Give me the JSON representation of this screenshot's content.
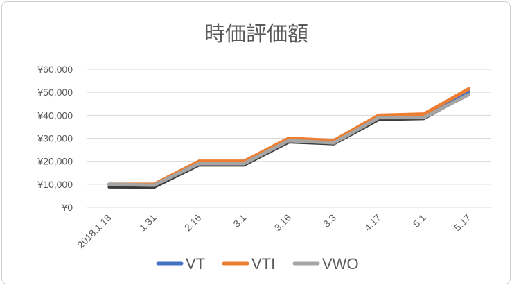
{
  "chart_data": {
    "type": "line",
    "title": "時価評価額",
    "categories": [
      "2018.1.18",
      "1.31",
      "2.16",
      "3.1",
      "3.16",
      "3.3",
      "4.17",
      "5.1",
      "5.17"
    ],
    "y_tick_labels": [
      "¥0",
      "¥10,000",
      "¥20,000",
      "¥30,000",
      "¥40,000",
      "¥50,000",
      "¥60,000"
    ],
    "ylim": [
      0,
      60000
    ],
    "grid": true,
    "legend_position": "bottom",
    "series": [
      {
        "name": "VT",
        "color": "#4472C4",
        "values": [
          10000,
          9900,
          19500,
          19500,
          29500,
          28700,
          39300,
          39700,
          50500
        ]
      },
      {
        "name": "VTI",
        "color": "#ED7D31",
        "values": [
          10000,
          10000,
          20000,
          20000,
          30000,
          29000,
          40000,
          40500,
          51500
        ]
      },
      {
        "name": "VWO",
        "color": "#A5A5A5",
        "values": [
          10000,
          9600,
          19000,
          19000,
          29000,
          28000,
          39000,
          39000,
          49000
        ]
      }
    ]
  }
}
